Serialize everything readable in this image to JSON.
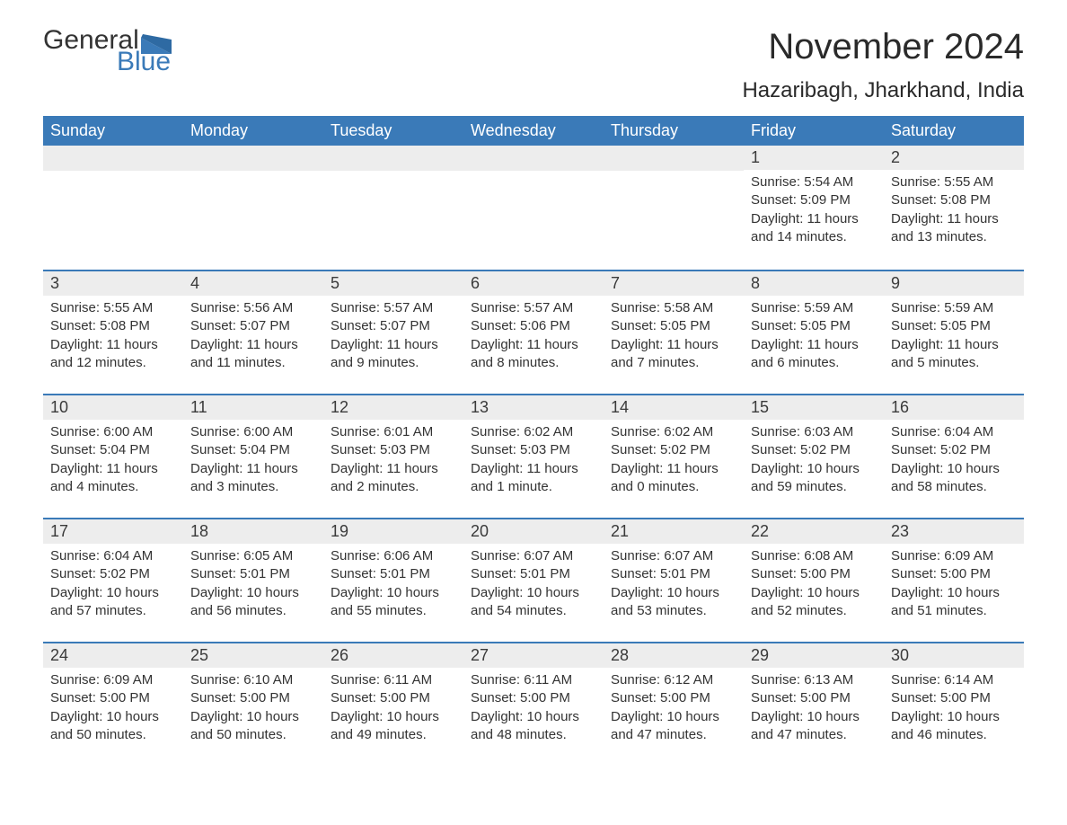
{
  "brand": {
    "general": "General",
    "blue": "Blue"
  },
  "title": "November 2024",
  "location": "Hazaribagh, Jharkhand, India",
  "colors": {
    "header_bg": "#3a7ab8",
    "header_text": "#ffffff",
    "daynum_bg": "#ededed",
    "week_border": "#3a7ab8",
    "body_text": "#333333",
    "title_text": "#2a2a2a",
    "logo_blue": "#3a7ab8"
  },
  "day_labels": [
    "Sunday",
    "Monday",
    "Tuesday",
    "Wednesday",
    "Thursday",
    "Friday",
    "Saturday"
  ],
  "weeks": [
    [
      {
        "empty": true
      },
      {
        "empty": true
      },
      {
        "empty": true
      },
      {
        "empty": true
      },
      {
        "empty": true
      },
      {
        "date": "1",
        "sunrise": "Sunrise: 5:54 AM",
        "sunset": "Sunset: 5:09 PM",
        "daylight": "Daylight: 11 hours and 14 minutes."
      },
      {
        "date": "2",
        "sunrise": "Sunrise: 5:55 AM",
        "sunset": "Sunset: 5:08 PM",
        "daylight": "Daylight: 11 hours and 13 minutes."
      }
    ],
    [
      {
        "date": "3",
        "sunrise": "Sunrise: 5:55 AM",
        "sunset": "Sunset: 5:08 PM",
        "daylight": "Daylight: 11 hours and 12 minutes."
      },
      {
        "date": "4",
        "sunrise": "Sunrise: 5:56 AM",
        "sunset": "Sunset: 5:07 PM",
        "daylight": "Daylight: 11 hours and 11 minutes."
      },
      {
        "date": "5",
        "sunrise": "Sunrise: 5:57 AM",
        "sunset": "Sunset: 5:07 PM",
        "daylight": "Daylight: 11 hours and 9 minutes."
      },
      {
        "date": "6",
        "sunrise": "Sunrise: 5:57 AM",
        "sunset": "Sunset: 5:06 PM",
        "daylight": "Daylight: 11 hours and 8 minutes."
      },
      {
        "date": "7",
        "sunrise": "Sunrise: 5:58 AM",
        "sunset": "Sunset: 5:05 PM",
        "daylight": "Daylight: 11 hours and 7 minutes."
      },
      {
        "date": "8",
        "sunrise": "Sunrise: 5:59 AM",
        "sunset": "Sunset: 5:05 PM",
        "daylight": "Daylight: 11 hours and 6 minutes."
      },
      {
        "date": "9",
        "sunrise": "Sunrise: 5:59 AM",
        "sunset": "Sunset: 5:05 PM",
        "daylight": "Daylight: 11 hours and 5 minutes."
      }
    ],
    [
      {
        "date": "10",
        "sunrise": "Sunrise: 6:00 AM",
        "sunset": "Sunset: 5:04 PM",
        "daylight": "Daylight: 11 hours and 4 minutes."
      },
      {
        "date": "11",
        "sunrise": "Sunrise: 6:00 AM",
        "sunset": "Sunset: 5:04 PM",
        "daylight": "Daylight: 11 hours and 3 minutes."
      },
      {
        "date": "12",
        "sunrise": "Sunrise: 6:01 AM",
        "sunset": "Sunset: 5:03 PM",
        "daylight": "Daylight: 11 hours and 2 minutes."
      },
      {
        "date": "13",
        "sunrise": "Sunrise: 6:02 AM",
        "sunset": "Sunset: 5:03 PM",
        "daylight": "Daylight: 11 hours and 1 minute."
      },
      {
        "date": "14",
        "sunrise": "Sunrise: 6:02 AM",
        "sunset": "Sunset: 5:02 PM",
        "daylight": "Daylight: 11 hours and 0 minutes."
      },
      {
        "date": "15",
        "sunrise": "Sunrise: 6:03 AM",
        "sunset": "Sunset: 5:02 PM",
        "daylight": "Daylight: 10 hours and 59 minutes."
      },
      {
        "date": "16",
        "sunrise": "Sunrise: 6:04 AM",
        "sunset": "Sunset: 5:02 PM",
        "daylight": "Daylight: 10 hours and 58 minutes."
      }
    ],
    [
      {
        "date": "17",
        "sunrise": "Sunrise: 6:04 AM",
        "sunset": "Sunset: 5:02 PM",
        "daylight": "Daylight: 10 hours and 57 minutes."
      },
      {
        "date": "18",
        "sunrise": "Sunrise: 6:05 AM",
        "sunset": "Sunset: 5:01 PM",
        "daylight": "Daylight: 10 hours and 56 minutes."
      },
      {
        "date": "19",
        "sunrise": "Sunrise: 6:06 AM",
        "sunset": "Sunset: 5:01 PM",
        "daylight": "Daylight: 10 hours and 55 minutes."
      },
      {
        "date": "20",
        "sunrise": "Sunrise: 6:07 AM",
        "sunset": "Sunset: 5:01 PM",
        "daylight": "Daylight: 10 hours and 54 minutes."
      },
      {
        "date": "21",
        "sunrise": "Sunrise: 6:07 AM",
        "sunset": "Sunset: 5:01 PM",
        "daylight": "Daylight: 10 hours and 53 minutes."
      },
      {
        "date": "22",
        "sunrise": "Sunrise: 6:08 AM",
        "sunset": "Sunset: 5:00 PM",
        "daylight": "Daylight: 10 hours and 52 minutes."
      },
      {
        "date": "23",
        "sunrise": "Sunrise: 6:09 AM",
        "sunset": "Sunset: 5:00 PM",
        "daylight": "Daylight: 10 hours and 51 minutes."
      }
    ],
    [
      {
        "date": "24",
        "sunrise": "Sunrise: 6:09 AM",
        "sunset": "Sunset: 5:00 PM",
        "daylight": "Daylight: 10 hours and 50 minutes."
      },
      {
        "date": "25",
        "sunrise": "Sunrise: 6:10 AM",
        "sunset": "Sunset: 5:00 PM",
        "daylight": "Daylight: 10 hours and 50 minutes."
      },
      {
        "date": "26",
        "sunrise": "Sunrise: 6:11 AM",
        "sunset": "Sunset: 5:00 PM",
        "daylight": "Daylight: 10 hours and 49 minutes."
      },
      {
        "date": "27",
        "sunrise": "Sunrise: 6:11 AM",
        "sunset": "Sunset: 5:00 PM",
        "daylight": "Daylight: 10 hours and 48 minutes."
      },
      {
        "date": "28",
        "sunrise": "Sunrise: 6:12 AM",
        "sunset": "Sunset: 5:00 PM",
        "daylight": "Daylight: 10 hours and 47 minutes."
      },
      {
        "date": "29",
        "sunrise": "Sunrise: 6:13 AM",
        "sunset": "Sunset: 5:00 PM",
        "daylight": "Daylight: 10 hours and 47 minutes."
      },
      {
        "date": "30",
        "sunrise": "Sunrise: 6:14 AM",
        "sunset": "Sunset: 5:00 PM",
        "daylight": "Daylight: 10 hours and 46 minutes."
      }
    ]
  ]
}
